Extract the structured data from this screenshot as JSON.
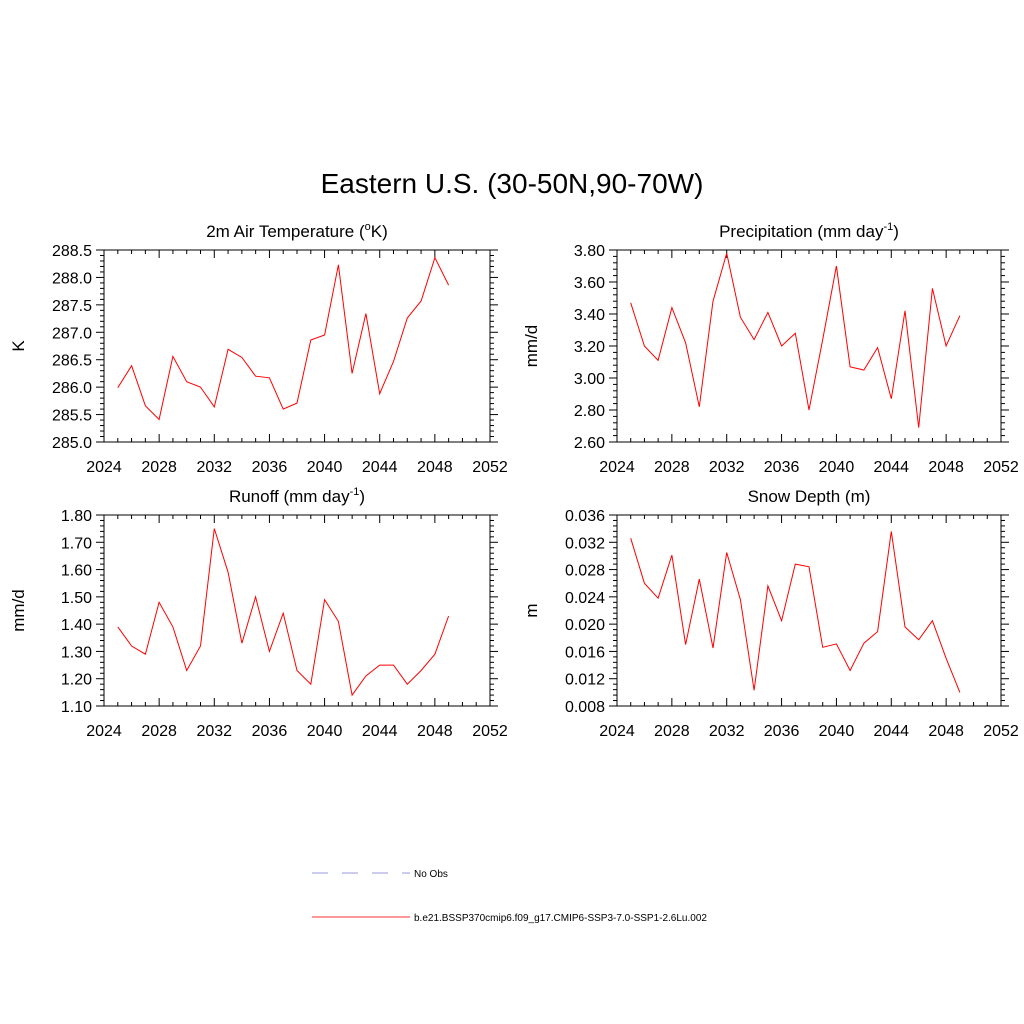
{
  "page": {
    "title": "Eastern U.S. (30-50N,90-70W)"
  },
  "legend": [
    {
      "label": "No Obs",
      "color": "#9999dd",
      "dash": true
    },
    {
      "label": "b.e21.BSSP370cmip6.f09_g17.CMIP6-SSP3-7.0-SSP1-2.6Lu.002",
      "color": "#ff3333",
      "dash": false
    }
  ],
  "chart_data": [
    {
      "type": "line",
      "title_main": "2m Air Temperature (",
      "title_sup": "o",
      "title_tail": "K)",
      "ylabel": "K",
      "xlim": [
        2024,
        2052
      ],
      "ylim": [
        285.0,
        288.5
      ],
      "xticks": [
        "2024",
        "2028",
        "2032",
        "2036",
        "2040",
        "2044",
        "2048",
        "2052"
      ],
      "yticks": [
        "285.0",
        "285.5",
        "286.0",
        "286.5",
        "287.0",
        "287.5",
        "288.0",
        "288.5"
      ],
      "series": [
        {
          "color": "#ff0000",
          "x": [
            2025,
            2026,
            2027,
            2028,
            2029,
            2030,
            2031,
            2032,
            2033,
            2034,
            2035,
            2036,
            2037,
            2038,
            2039,
            2040,
            2041,
            2042,
            2043,
            2044,
            2045,
            2046,
            2047,
            2048,
            2049
          ],
          "y": [
            285.99,
            286.39,
            285.66,
            285.41,
            286.56,
            286.1,
            286.0,
            285.64,
            286.69,
            286.54,
            286.2,
            286.17,
            285.6,
            285.71,
            286.86,
            286.95,
            288.23,
            286.25,
            287.34,
            285.88,
            286.47,
            287.26,
            287.57,
            288.36,
            287.86
          ]
        }
      ]
    },
    {
      "type": "line",
      "title_main": "Precipitation (mm day",
      "title_sup": "-1",
      "title_tail": ")",
      "ylabel": "mm/d",
      "xlim": [
        2024,
        2052
      ],
      "ylim": [
        2.6,
        3.8
      ],
      "xticks": [
        "2024",
        "2028",
        "2032",
        "2036",
        "2040",
        "2044",
        "2048",
        "2052"
      ],
      "yticks": [
        "2.60",
        "2.80",
        "3.00",
        "3.20",
        "3.40",
        "3.60",
        "3.80"
      ],
      "series": [
        {
          "color": "#ff0000",
          "x": [
            2025,
            2026,
            2027,
            2028,
            2029,
            2030,
            2031,
            2032,
            2033,
            2034,
            2035,
            2036,
            2037,
            2038,
            2039,
            2040,
            2041,
            2042,
            2043,
            2044,
            2045,
            2046,
            2047,
            2048,
            2049
          ],
          "y": [
            3.47,
            3.2,
            3.11,
            3.44,
            3.22,
            2.82,
            3.48,
            3.78,
            3.38,
            3.24,
            3.41,
            3.2,
            3.28,
            2.8,
            3.24,
            3.7,
            3.07,
            3.05,
            3.19,
            2.87,
            3.42,
            2.69,
            3.56,
            3.2,
            3.39
          ]
        }
      ]
    },
    {
      "type": "line",
      "title_main": "Runoff (mm day",
      "title_sup": "-1",
      "title_tail": ")",
      "ylabel": "mm/d",
      "xlim": [
        2024,
        2052
      ],
      "ylim": [
        1.1,
        1.8
      ],
      "xticks": [
        "2024",
        "2028",
        "2032",
        "2036",
        "2040",
        "2044",
        "2048",
        "2052"
      ],
      "yticks": [
        "1.10",
        "1.20",
        "1.30",
        "1.40",
        "1.50",
        "1.60",
        "1.70",
        "1.80"
      ],
      "series": [
        {
          "color": "#ff0000",
          "x": [
            2025,
            2026,
            2027,
            2028,
            2029,
            2030,
            2031,
            2032,
            2033,
            2034,
            2035,
            2036,
            2037,
            2038,
            2039,
            2040,
            2041,
            2042,
            2043,
            2044,
            2045,
            2046,
            2047,
            2048,
            2049
          ],
          "y": [
            1.39,
            1.32,
            1.29,
            1.48,
            1.39,
            1.23,
            1.32,
            1.75,
            1.59,
            1.33,
            1.5,
            1.3,
            1.44,
            1.23,
            1.18,
            1.49,
            1.41,
            1.14,
            1.21,
            1.25,
            1.25,
            1.18,
            1.23,
            1.29,
            1.43
          ]
        }
      ]
    },
    {
      "type": "line",
      "title_main": "Snow Depth (m)",
      "title_sup": "",
      "title_tail": "",
      "ylabel": "m",
      "xlim": [
        2024,
        2052
      ],
      "ylim": [
        0.008,
        0.036
      ],
      "xticks": [
        "2024",
        "2028",
        "2032",
        "2036",
        "2040",
        "2044",
        "2048",
        "2052"
      ],
      "yticks": [
        "0.008",
        "0.012",
        "0.016",
        "0.020",
        "0.024",
        "0.028",
        "0.032",
        "0.036"
      ],
      "series": [
        {
          "color": "#ff0000",
          "x": [
            2025,
            2026,
            2027,
            2028,
            2029,
            2030,
            2031,
            2032,
            2033,
            2034,
            2035,
            2036,
            2037,
            2038,
            2039,
            2040,
            2041,
            2042,
            2043,
            2044,
            2045,
            2046,
            2047,
            2048,
            2049
          ],
          "y": [
            0.0326,
            0.026,
            0.0238,
            0.0301,
            0.017,
            0.0266,
            0.0165,
            0.0305,
            0.0236,
            0.0103,
            0.0256,
            0.0205,
            0.0288,
            0.0284,
            0.0166,
            0.0171,
            0.0132,
            0.0172,
            0.0189,
            0.0336,
            0.0196,
            0.0177,
            0.0205,
            0.015,
            0.01
          ]
        }
      ]
    }
  ]
}
